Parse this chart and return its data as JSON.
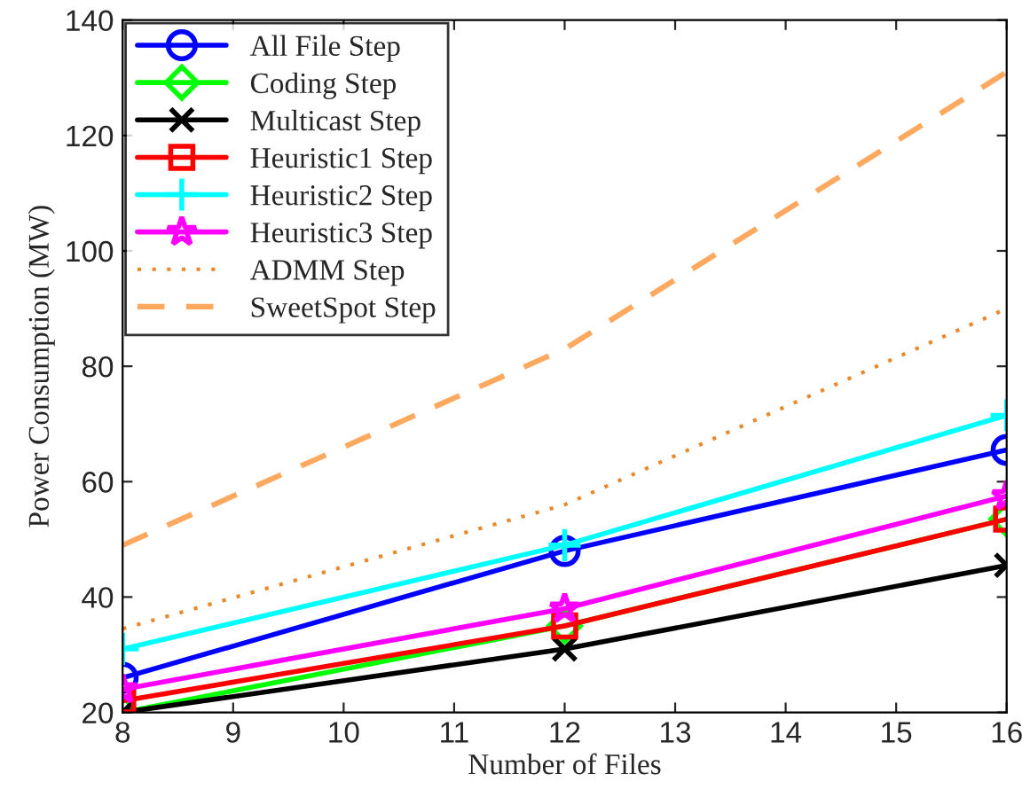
{
  "chart_data": {
    "type": "line",
    "xlabel": "Number of Files",
    "ylabel": "Power Consumption (MW)",
    "x": [
      8,
      12,
      16
    ],
    "xlim": [
      8,
      16
    ],
    "xticks": [
      8,
      9,
      10,
      11,
      12,
      13,
      14,
      15,
      16
    ],
    "ylim": [
      20,
      140
    ],
    "yticks": [
      20,
      40,
      60,
      80,
      100,
      120,
      140
    ],
    "grid": false,
    "legend": "top left",
    "series": [
      {
        "name": "All File Step",
        "color": "#0000ff",
        "marker": "circle",
        "line_style": "solid",
        "values": [
          26,
          48,
          65.5
        ]
      },
      {
        "name": "Coding Step",
        "color": "#00ff00",
        "marker": "diamond",
        "line_style": "solid",
        "values": [
          20,
          35,
          53.5
        ]
      },
      {
        "name": "Multicast Step",
        "color": "#000000",
        "marker": "cross",
        "line_style": "solid",
        "values": [
          20,
          31,
          45.5
        ]
      },
      {
        "name": "Heuristic1 Step",
        "color": "#ff0000",
        "marker": "square",
        "line_style": "solid",
        "values": [
          22,
          35,
          53.5
        ]
      },
      {
        "name": "Heuristic2 Step",
        "color": "#00ffff",
        "marker": "plus",
        "line_style": "solid",
        "values": [
          31,
          49,
          71.5
        ]
      },
      {
        "name": "Heuristic3 Step",
        "color": "#ff00ff",
        "marker": "star",
        "line_style": "solid",
        "values": [
          24,
          38,
          57.5
        ]
      },
      {
        "name": "ADMM Step",
        "color": "#e8892c",
        "marker": "none",
        "line_style": "dotted",
        "values": [
          34.5,
          56,
          90
        ]
      },
      {
        "name": "SweetSpot Step",
        "color": "#ffa860",
        "marker": "none",
        "line_style": "dashed",
        "values": [
          49,
          83,
          131
        ]
      }
    ]
  }
}
